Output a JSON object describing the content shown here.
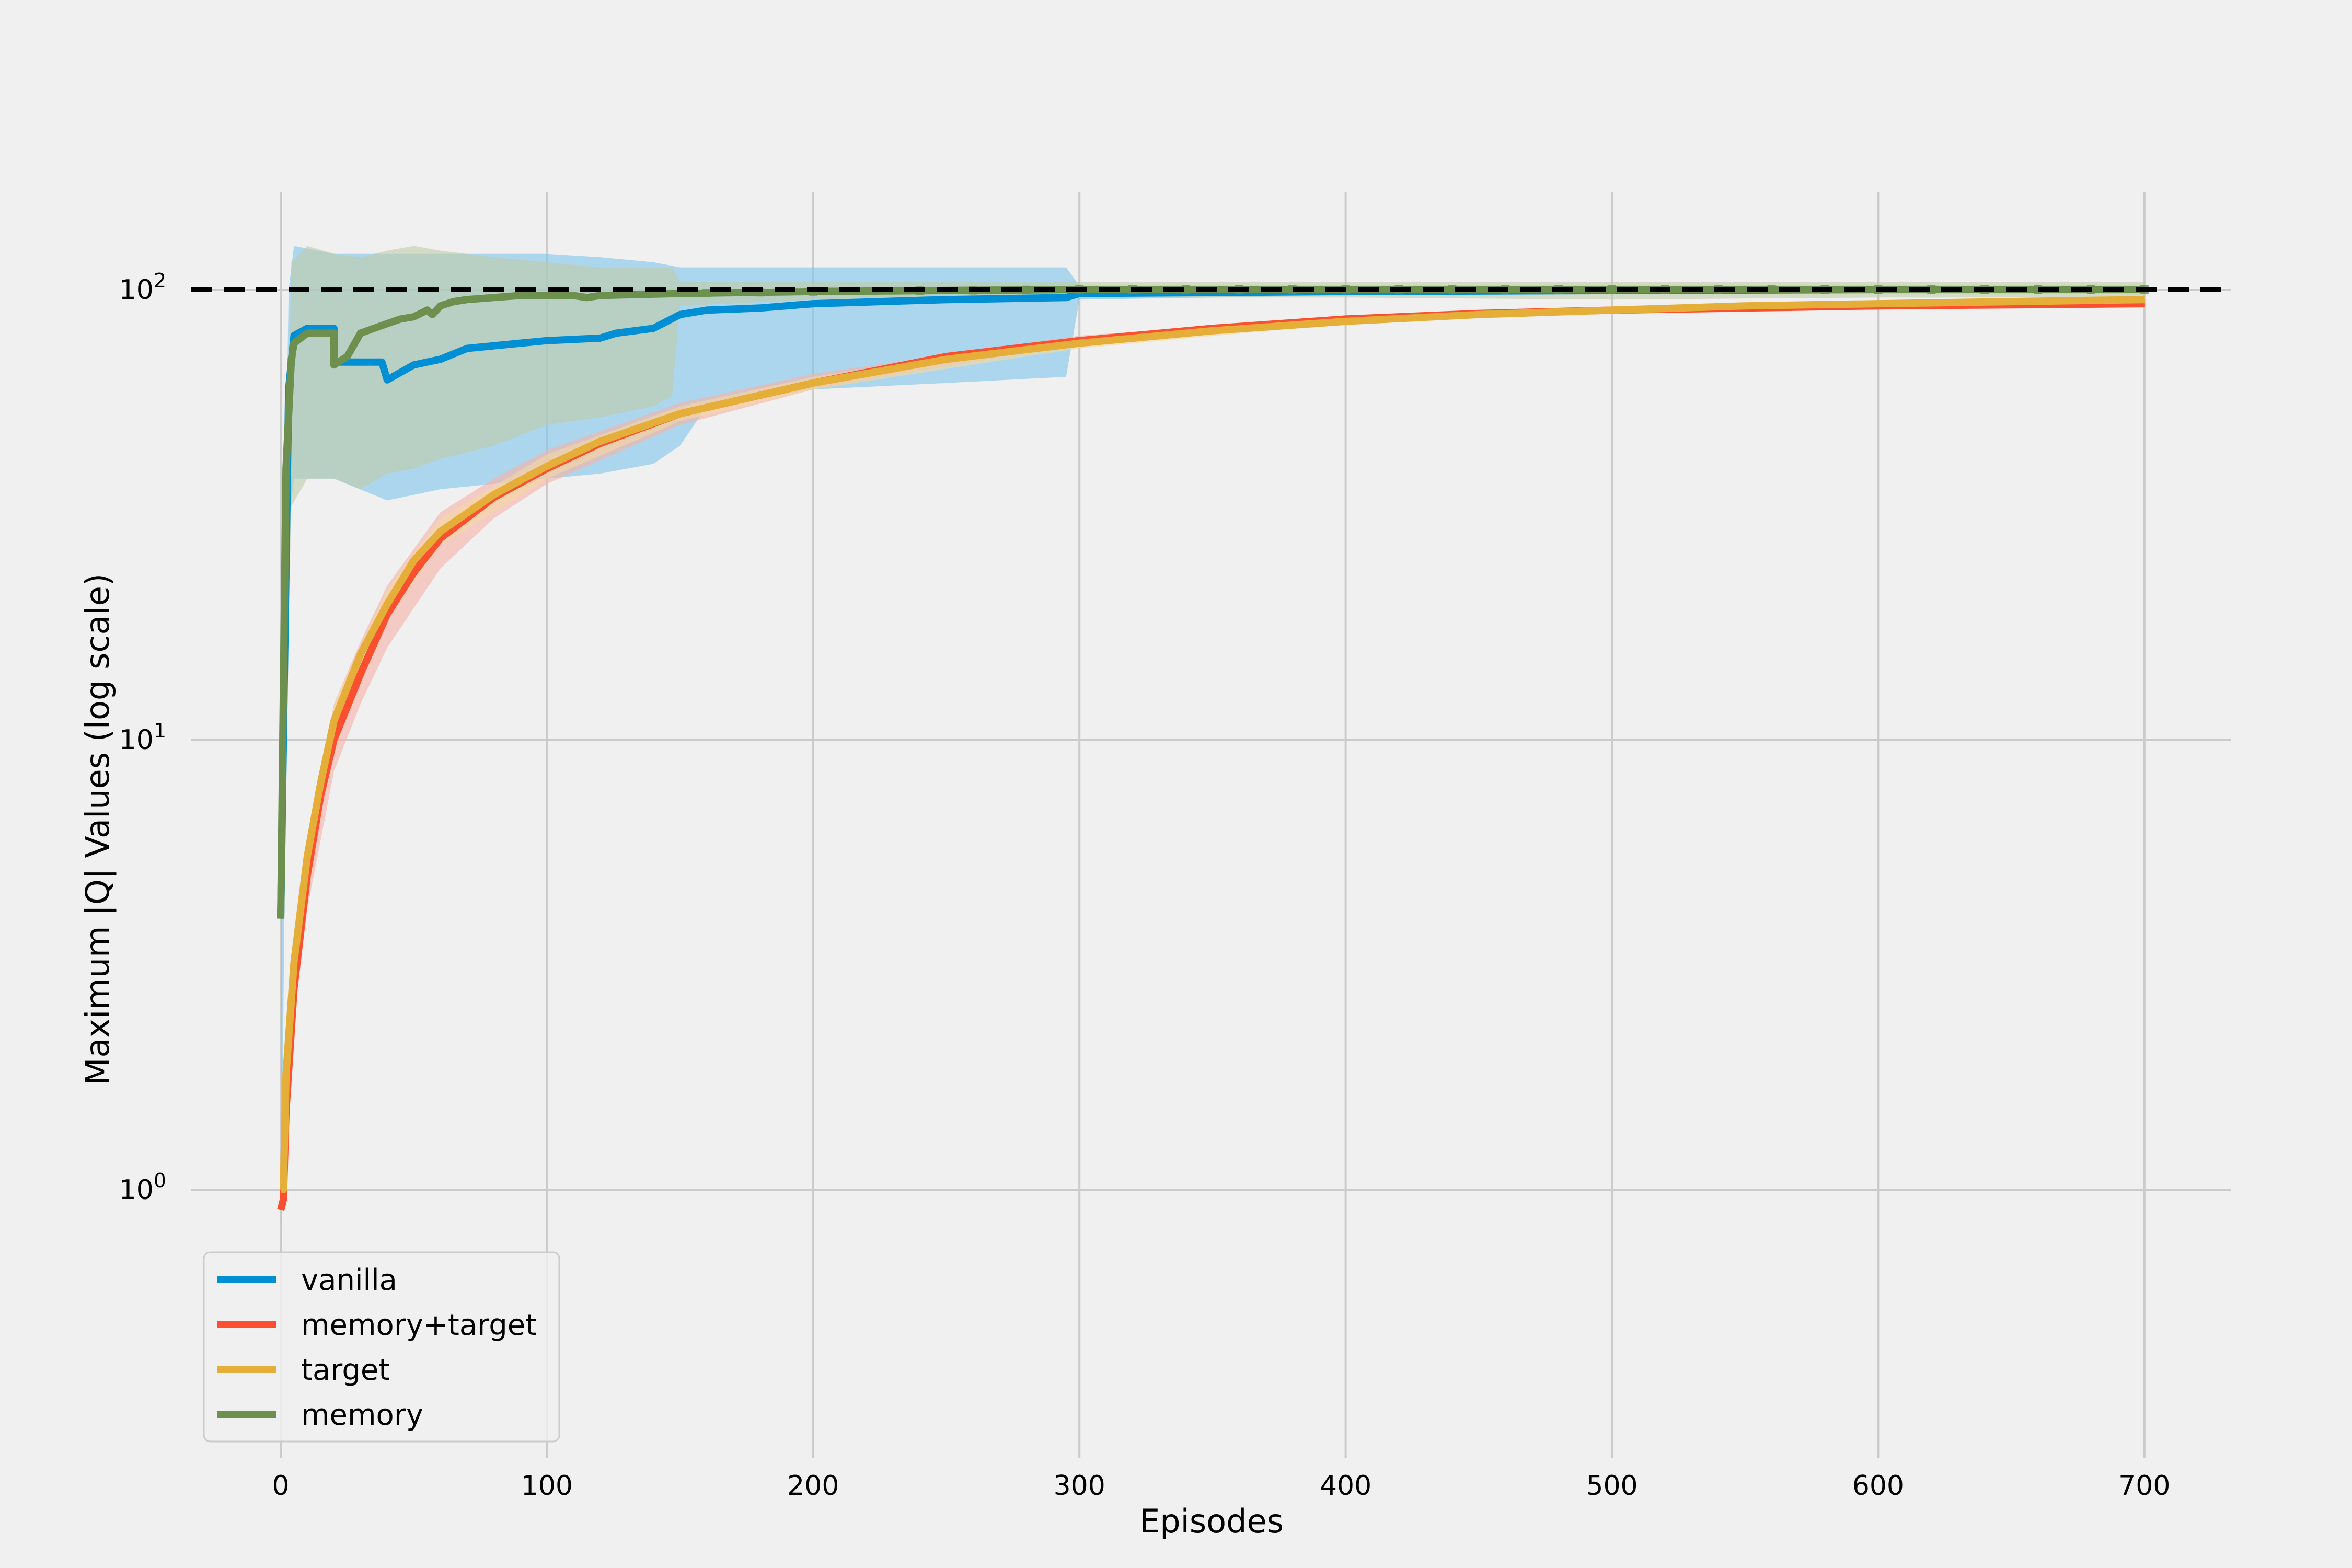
{
  "chart_data": {
    "type": "line",
    "title": "",
    "xlabel": "Episodes",
    "ylabel": "Maximum |Q| Values (log scale)",
    "y_scale": "log",
    "xlim": [
      -35,
      735
    ],
    "ylim": [
      0.27,
      180
    ],
    "grid": true,
    "legend_position": "lower-left",
    "x_ticks": [
      0,
      100,
      200,
      300,
      400,
      500,
      600,
      700
    ],
    "x_tick_labels": [
      "0",
      "100",
      "200",
      "300",
      "400",
      "500",
      "600",
      "700"
    ],
    "y_ticks": [
      1,
      10,
      100
    ],
    "y_tick_labels": [
      {
        "base": "10",
        "exp": "0"
      },
      {
        "base": "10",
        "exp": "1"
      },
      {
        "base": "10",
        "exp": "2"
      }
    ],
    "reference_line": {
      "y": 100,
      "style": "dashed",
      "color": "#000000"
    },
    "series": [
      {
        "name": "vanilla",
        "color": "#008fd5",
        "band_color": "#7ec4ec",
        "x": [
          0,
          3,
          5,
          10,
          20,
          20,
          38,
          40,
          50,
          60,
          70,
          80,
          90,
          100,
          120,
          126,
          140,
          150,
          160,
          180,
          200,
          250,
          295,
          300,
          400,
          500,
          600,
          700
        ],
        "y": [
          4.0,
          60,
          79,
          82,
          82,
          69,
          69,
          63,
          68,
          70,
          74,
          75,
          76,
          77,
          78,
          80,
          82,
          88,
          90,
          91,
          93,
          95,
          96,
          98,
          99,
          99.5,
          100,
          100
        ],
        "band_x": [
          0,
          3,
          5,
          20,
          40,
          60,
          80,
          100,
          120,
          140,
          150,
          160,
          200,
          250,
          295,
          300,
          400,
          500,
          600,
          700
        ],
        "band_low": [
          0.7,
          30,
          38,
          38,
          34,
          36,
          37,
          38,
          39,
          41,
          45,
          55,
          60,
          62,
          64,
          95,
          97,
          98,
          98,
          98
        ],
        "band_high": [
          8,
          100,
          125,
          120,
          120,
          120,
          120,
          120,
          118,
          115,
          112,
          112,
          112,
          112,
          112,
          102,
          102,
          102,
          102,
          102
        ]
      },
      {
        "name": "memory+target",
        "color": "#fc4f30",
        "band_color": "#f7b2a6",
        "x": [
          0,
          1,
          2,
          5,
          10,
          15,
          20,
          30,
          40,
          50,
          60,
          80,
          100,
          120,
          150,
          200,
          250,
          300,
          350,
          400,
          450,
          500,
          550,
          600,
          650,
          700
        ],
        "y": [
          0.9,
          0.95,
          1.5,
          2.8,
          5,
          7.5,
          10,
          14,
          19,
          23.5,
          28,
          34.5,
          40,
          45.5,
          53,
          62,
          71,
          77,
          82,
          86,
          88.5,
          90,
          91,
          92,
          92.5,
          93
        ],
        "band_x": [
          0,
          2,
          5,
          10,
          20,
          30,
          40,
          60,
          80,
          100,
          150,
          200,
          300,
          400,
          500,
          600,
          700
        ],
        "band_low": [
          0.75,
          1.3,
          2.4,
          4.2,
          8.5,
          12,
          16,
          24,
          31,
          37,
          50,
          60,
          76,
          85,
          89,
          91,
          92
        ],
        "band_high": [
          1.05,
          1.8,
          3.3,
          6,
          12,
          16.5,
          22,
          32,
          38,
          44,
          56,
          65,
          79,
          87,
          91,
          93,
          94
        ]
      },
      {
        "name": "target",
        "color": "#e5ae38",
        "band_color": "#f3d8a0",
        "x": [
          0,
          1,
          2,
          5,
          10,
          15,
          20,
          30,
          40,
          50,
          60,
          80,
          100,
          120,
          150,
          200,
          250,
          300,
          350,
          400,
          450,
          500,
          550,
          600,
          650,
          700
        ],
        "y": [
          1.0,
          1.0,
          1.8,
          3.2,
          5.5,
          8,
          11,
          15.5,
          20,
          25,
          29,
          35,
          40.5,
          46,
          53,
          62,
          70,
          76,
          81,
          85,
          88,
          90,
          92,
          93,
          94,
          95
        ],
        "band_x": [
          0,
          2,
          10,
          20,
          40,
          60,
          100,
          150,
          200,
          300,
          400,
          500,
          600,
          700
        ],
        "band_low": [
          0.9,
          1.6,
          5,
          10,
          18.5,
          27,
          38,
          51,
          60,
          74,
          84,
          89,
          92,
          94
        ],
        "band_high": [
          1.1,
          2.0,
          6,
          12,
          21.5,
          31,
          43,
          55,
          64,
          78,
          86,
          91,
          94,
          96
        ]
      },
      {
        "name": "memory",
        "color": "#6d904f",
        "band_color": "#bfcca9",
        "x": [
          0,
          2,
          4,
          5,
          10,
          20,
          20,
          25,
          30,
          40,
          45,
          50,
          55,
          57,
          60,
          65,
          70,
          80,
          90,
          110,
          115,
          120,
          150,
          200,
          300,
          400,
          500,
          600,
          700
        ],
        "y": [
          4.0,
          40,
          70,
          76,
          80,
          80,
          68,
          71,
          80,
          84,
          86,
          87,
          90,
          88,
          92,
          94,
          95,
          96,
          97,
          97,
          96,
          97,
          98,
          99,
          100,
          100,
          100,
          100,
          100
        ],
        "band_x": [
          0,
          4,
          10,
          20,
          30,
          40,
          50,
          60,
          80,
          100,
          120,
          140,
          147,
          150,
          200,
          300,
          400,
          500,
          600,
          700
        ],
        "band_low": [
          3.5,
          33,
          38,
          38,
          36,
          39,
          40,
          42,
          45,
          50,
          52,
          55,
          58,
          92,
          95,
          96,
          96,
          95,
          96,
          96
        ],
        "band_high": [
          5,
          115,
          125,
          120,
          118,
          122,
          125,
          122,
          118,
          115,
          112,
          112,
          112,
          104,
          104,
          104,
          104,
          104,
          104,
          104
        ]
      }
    ]
  }
}
